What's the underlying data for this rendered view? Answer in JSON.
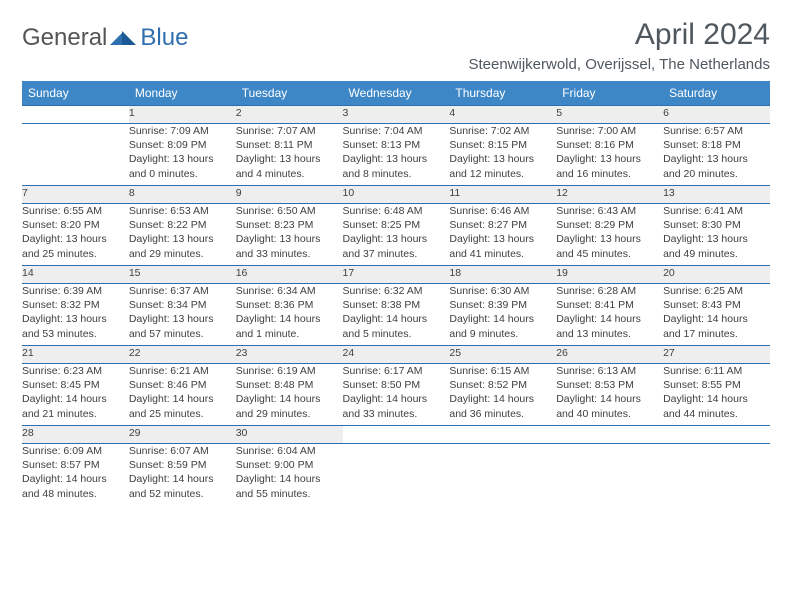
{
  "logo": {
    "text1": "General",
    "text2": "Blue"
  },
  "title": "April 2024",
  "location": "Steenwijkerwold, Overijssel, The Netherlands",
  "colors": {
    "header_bg": "#3d87c7",
    "header_text": "#ffffff",
    "border": "#2f6fb0",
    "daynum_bg": "#eeeeee",
    "body_text": "#404040",
    "title_text": "#50585f",
    "logo_gray": "#555555",
    "logo_blue": "#2f6fb0"
  },
  "weekdays": [
    "Sunday",
    "Monday",
    "Tuesday",
    "Wednesday",
    "Thursday",
    "Friday",
    "Saturday"
  ],
  "weeks": [
    [
      null,
      {
        "n": "1",
        "sr": "Sunrise: 7:09 AM",
        "ss": "Sunset: 8:09 PM",
        "d1": "Daylight: 13 hours",
        "d2": "and 0 minutes."
      },
      {
        "n": "2",
        "sr": "Sunrise: 7:07 AM",
        "ss": "Sunset: 8:11 PM",
        "d1": "Daylight: 13 hours",
        "d2": "and 4 minutes."
      },
      {
        "n": "3",
        "sr": "Sunrise: 7:04 AM",
        "ss": "Sunset: 8:13 PM",
        "d1": "Daylight: 13 hours",
        "d2": "and 8 minutes."
      },
      {
        "n": "4",
        "sr": "Sunrise: 7:02 AM",
        "ss": "Sunset: 8:15 PM",
        "d1": "Daylight: 13 hours",
        "d2": "and 12 minutes."
      },
      {
        "n": "5",
        "sr": "Sunrise: 7:00 AM",
        "ss": "Sunset: 8:16 PM",
        "d1": "Daylight: 13 hours",
        "d2": "and 16 minutes."
      },
      {
        "n": "6",
        "sr": "Sunrise: 6:57 AM",
        "ss": "Sunset: 8:18 PM",
        "d1": "Daylight: 13 hours",
        "d2": "and 20 minutes."
      }
    ],
    [
      {
        "n": "7",
        "sr": "Sunrise: 6:55 AM",
        "ss": "Sunset: 8:20 PM",
        "d1": "Daylight: 13 hours",
        "d2": "and 25 minutes."
      },
      {
        "n": "8",
        "sr": "Sunrise: 6:53 AM",
        "ss": "Sunset: 8:22 PM",
        "d1": "Daylight: 13 hours",
        "d2": "and 29 minutes."
      },
      {
        "n": "9",
        "sr": "Sunrise: 6:50 AM",
        "ss": "Sunset: 8:23 PM",
        "d1": "Daylight: 13 hours",
        "d2": "and 33 minutes."
      },
      {
        "n": "10",
        "sr": "Sunrise: 6:48 AM",
        "ss": "Sunset: 8:25 PM",
        "d1": "Daylight: 13 hours",
        "d2": "and 37 minutes."
      },
      {
        "n": "11",
        "sr": "Sunrise: 6:46 AM",
        "ss": "Sunset: 8:27 PM",
        "d1": "Daylight: 13 hours",
        "d2": "and 41 minutes."
      },
      {
        "n": "12",
        "sr": "Sunrise: 6:43 AM",
        "ss": "Sunset: 8:29 PM",
        "d1": "Daylight: 13 hours",
        "d2": "and 45 minutes."
      },
      {
        "n": "13",
        "sr": "Sunrise: 6:41 AM",
        "ss": "Sunset: 8:30 PM",
        "d1": "Daylight: 13 hours",
        "d2": "and 49 minutes."
      }
    ],
    [
      {
        "n": "14",
        "sr": "Sunrise: 6:39 AM",
        "ss": "Sunset: 8:32 PM",
        "d1": "Daylight: 13 hours",
        "d2": "and 53 minutes."
      },
      {
        "n": "15",
        "sr": "Sunrise: 6:37 AM",
        "ss": "Sunset: 8:34 PM",
        "d1": "Daylight: 13 hours",
        "d2": "and 57 minutes."
      },
      {
        "n": "16",
        "sr": "Sunrise: 6:34 AM",
        "ss": "Sunset: 8:36 PM",
        "d1": "Daylight: 14 hours",
        "d2": "and 1 minute."
      },
      {
        "n": "17",
        "sr": "Sunrise: 6:32 AM",
        "ss": "Sunset: 8:38 PM",
        "d1": "Daylight: 14 hours",
        "d2": "and 5 minutes."
      },
      {
        "n": "18",
        "sr": "Sunrise: 6:30 AM",
        "ss": "Sunset: 8:39 PM",
        "d1": "Daylight: 14 hours",
        "d2": "and 9 minutes."
      },
      {
        "n": "19",
        "sr": "Sunrise: 6:28 AM",
        "ss": "Sunset: 8:41 PM",
        "d1": "Daylight: 14 hours",
        "d2": "and 13 minutes."
      },
      {
        "n": "20",
        "sr": "Sunrise: 6:25 AM",
        "ss": "Sunset: 8:43 PM",
        "d1": "Daylight: 14 hours",
        "d2": "and 17 minutes."
      }
    ],
    [
      {
        "n": "21",
        "sr": "Sunrise: 6:23 AM",
        "ss": "Sunset: 8:45 PM",
        "d1": "Daylight: 14 hours",
        "d2": "and 21 minutes."
      },
      {
        "n": "22",
        "sr": "Sunrise: 6:21 AM",
        "ss": "Sunset: 8:46 PM",
        "d1": "Daylight: 14 hours",
        "d2": "and 25 minutes."
      },
      {
        "n": "23",
        "sr": "Sunrise: 6:19 AM",
        "ss": "Sunset: 8:48 PM",
        "d1": "Daylight: 14 hours",
        "d2": "and 29 minutes."
      },
      {
        "n": "24",
        "sr": "Sunrise: 6:17 AM",
        "ss": "Sunset: 8:50 PM",
        "d1": "Daylight: 14 hours",
        "d2": "and 33 minutes."
      },
      {
        "n": "25",
        "sr": "Sunrise: 6:15 AM",
        "ss": "Sunset: 8:52 PM",
        "d1": "Daylight: 14 hours",
        "d2": "and 36 minutes."
      },
      {
        "n": "26",
        "sr": "Sunrise: 6:13 AM",
        "ss": "Sunset: 8:53 PM",
        "d1": "Daylight: 14 hours",
        "d2": "and 40 minutes."
      },
      {
        "n": "27",
        "sr": "Sunrise: 6:11 AM",
        "ss": "Sunset: 8:55 PM",
        "d1": "Daylight: 14 hours",
        "d2": "and 44 minutes."
      }
    ],
    [
      {
        "n": "28",
        "sr": "Sunrise: 6:09 AM",
        "ss": "Sunset: 8:57 PM",
        "d1": "Daylight: 14 hours",
        "d2": "and 48 minutes."
      },
      {
        "n": "29",
        "sr": "Sunrise: 6:07 AM",
        "ss": "Sunset: 8:59 PM",
        "d1": "Daylight: 14 hours",
        "d2": "and 52 minutes."
      },
      {
        "n": "30",
        "sr": "Sunrise: 6:04 AM",
        "ss": "Sunset: 9:00 PM",
        "d1": "Daylight: 14 hours",
        "d2": "and 55 minutes."
      },
      null,
      null,
      null,
      null
    ]
  ]
}
